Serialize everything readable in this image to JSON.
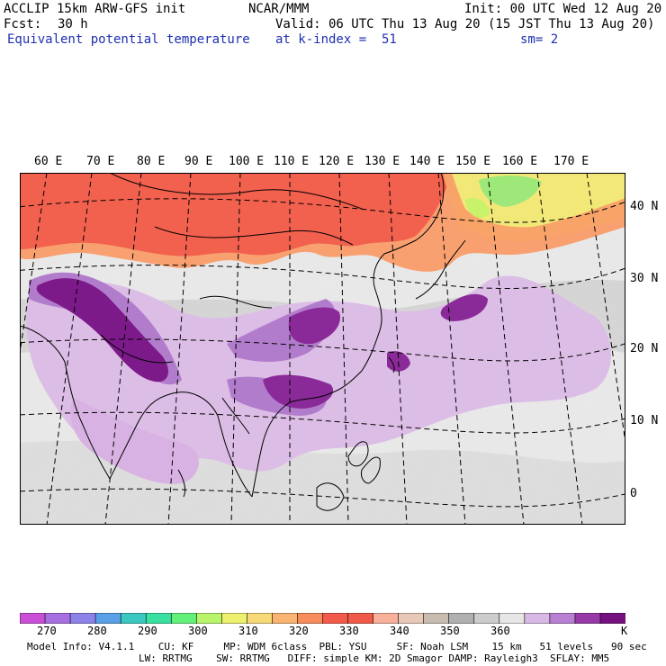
{
  "header": {
    "model": "ACCLIP 15km ARW-GFS init",
    "center": "NCAR/MMM",
    "init": "Init: 00 UTC Wed 12 Aug 20",
    "fcst_label": "Fcst:",
    "fcst_value": "30 h",
    "valid": "Valid: 06 UTC Thu 13 Aug 20 (15 JST Thu 13 Aug 20)",
    "field": "Equivalent potential temperature",
    "level": "at k-index =  51",
    "smoothing": "sm= 2"
  },
  "map": {
    "lon_labels": [
      "60 E",
      "70 E",
      "80 E",
      "90 E",
      "100 E",
      "110 E",
      "120 E",
      "130 E",
      "140 E",
      "150 E",
      "160 E",
      "170 E"
    ],
    "lat_labels": [
      "40 N",
      "30 N",
      "20 N",
      "10 N",
      "0"
    ]
  },
  "colorbar": {
    "colors": [
      "#c94fd6",
      "#a86fe0",
      "#8c82e8",
      "#5aa0e8",
      "#3cc8c0",
      "#3ae0a0",
      "#63f07a",
      "#b8f56a",
      "#eef070",
      "#f8d978",
      "#f8b470",
      "#f88c5c",
      "#f25a4c",
      "#f05a48",
      "#f8b09a",
      "#e8c8b8",
      "#c8bcb0",
      "#b0b0b0",
      "#cccccc",
      "#e6e6e6",
      "#d8b8e4",
      "#b87fd2",
      "#973aa8",
      "#74117e"
    ],
    "labels": [
      "270",
      "280",
      "290",
      "300",
      "310",
      "320",
      "330",
      "340",
      "350",
      "360"
    ],
    "unit": "K"
  },
  "footer": {
    "line1": "Model Info: V4.1.1    CU: KF     MP: WDM 6class  PBL: YSU     SF: Noah LSM    15 km   51 levels   90 sec",
    "line2": "LW: RRTMG    SW: RRTMG   DIFF: simple KM: 2D Smagor DAMP: Rayleigh3  SFLAY: MM5"
  }
}
